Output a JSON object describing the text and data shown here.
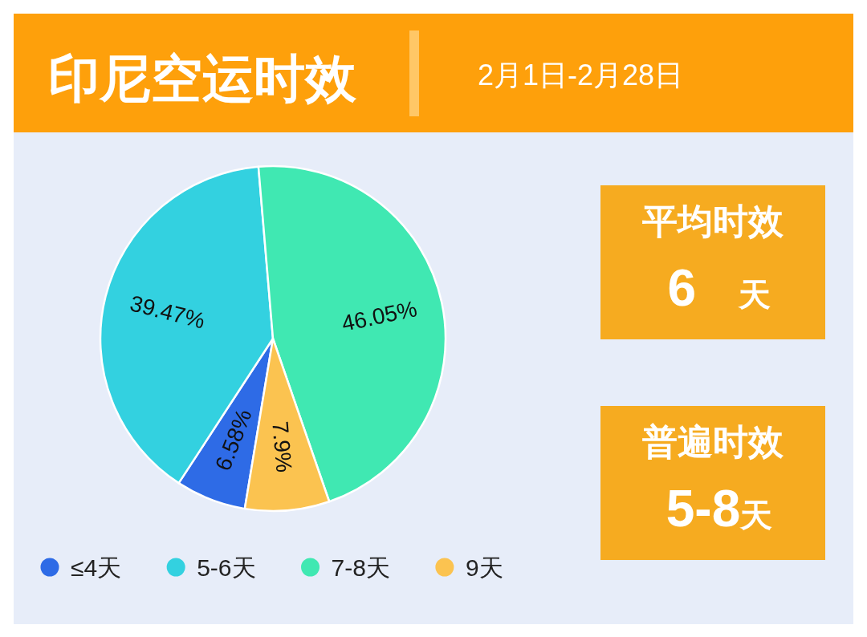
{
  "chart_data": {
    "type": "pie",
    "title": "印尼空运时效",
    "subtitle": "2月1日-2月28日",
    "categories": [
      "≤4天",
      "5-6天",
      "7-8天",
      "9天"
    ],
    "values": [
      6.58,
      39.47,
      46.05,
      7.9
    ],
    "colors": [
      "#2e6be6",
      "#33d1e0",
      "#40e8b2",
      "#fbc350"
    ],
    "value_labels": [
      "6.58%",
      "39.47%",
      "46.05%",
      "7.9%"
    ],
    "legend": "bottom",
    "annotations": [
      "平均时效",
      "6 天",
      "普遍时效",
      "5-8天"
    ]
  }
}
